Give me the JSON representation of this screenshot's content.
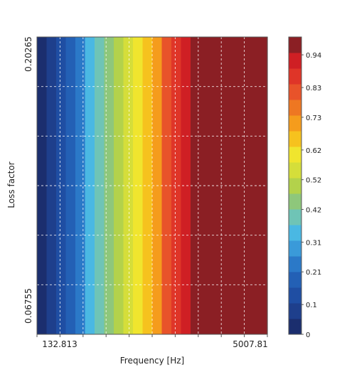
{
  "chart_data": {
    "type": "heatmap",
    "title": "",
    "xlabel": "Frequency [Hz]",
    "ylabel": "Loss factor",
    "x_scale": "log",
    "x_tick_labels": [
      "132.813",
      "5007.81"
    ],
    "y_tick_labels": [
      "0.06755",
      "0.20265"
    ],
    "grid": true,
    "colorbar": {
      "min": 0,
      "max": 1,
      "tick_values": [
        0,
        0.1,
        0.21,
        0.31,
        0.42,
        0.52,
        0.62,
        0.73,
        0.83,
        0.94
      ],
      "tick_labels": [
        "0",
        "0.1",
        "0.21",
        "0.31",
        "0.42",
        "0.52",
        "0.62",
        "0.73",
        "0.83",
        "0.94"
      ],
      "levels": 19,
      "colors": [
        "#1b2e6e",
        "#1e3f8c",
        "#1f4ea3",
        "#2360b5",
        "#2b79c8",
        "#3a9ad9",
        "#4ab8e3",
        "#6fc4b6",
        "#8ec77b",
        "#b3d24b",
        "#d5de3a",
        "#f0e52e",
        "#f6c21e",
        "#f59c1c",
        "#ee7722",
        "#e8532a",
        "#df3528",
        "#cf1f24",
        "#8b1f24"
      ]
    },
    "columns_by_frequency": [
      0.02,
      0.08,
      0.14,
      0.2,
      0.26,
      0.32,
      0.38,
      0.44,
      0.5,
      0.56,
      0.62,
      0.68,
      0.73,
      0.79,
      0.85,
      0.9,
      0.96,
      0.96,
      0.96,
      0.96,
      0.96,
      0.96,
      0.96,
      0.96
    ],
    "note_values": "Field is constant along the Loss factor axis; value increases with frequency and saturates near 0.96."
  }
}
